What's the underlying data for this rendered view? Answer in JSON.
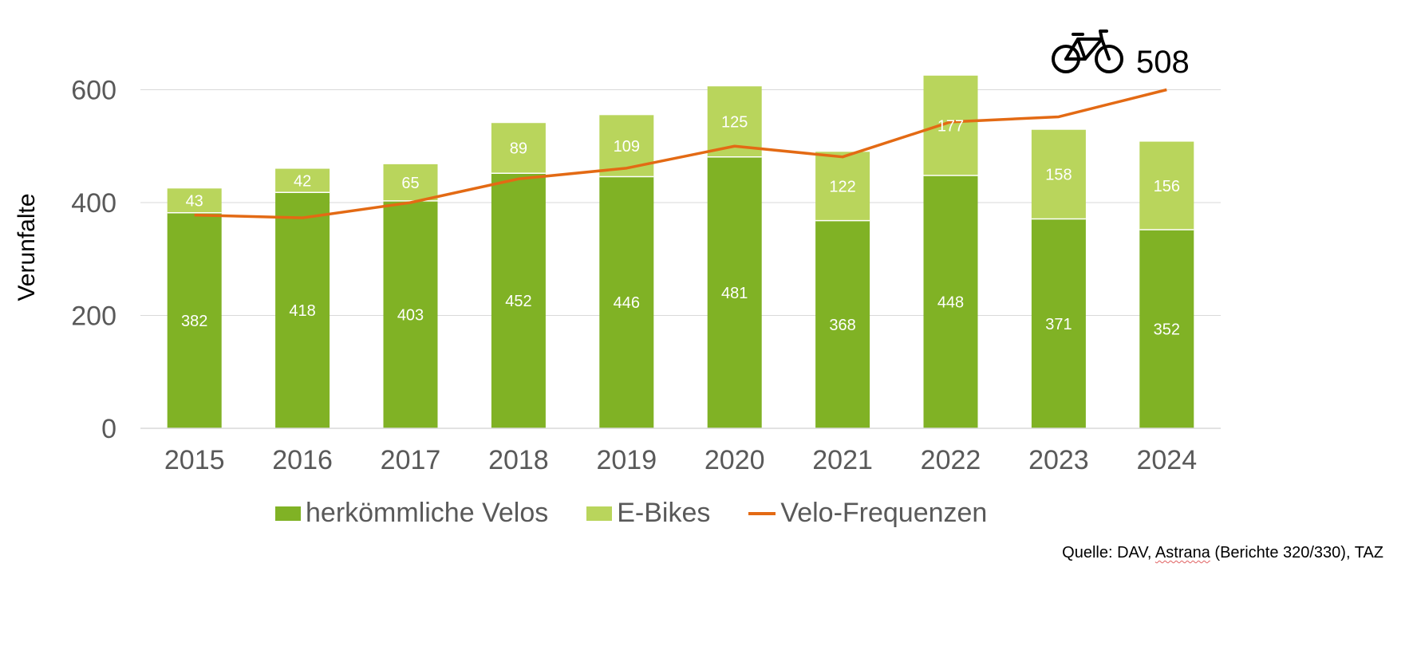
{
  "chart_data": {
    "type": "bar",
    "stacked": true,
    "categories": [
      "2015",
      "2016",
      "2017",
      "2018",
      "2019",
      "2020",
      "2021",
      "2022",
      "2023",
      "2024"
    ],
    "series": [
      {
        "name": "herkömmliche Velos",
        "type": "bar",
        "color": "#80b225",
        "values": [
          382,
          418,
          403,
          452,
          446,
          481,
          368,
          448,
          371,
          352
        ]
      },
      {
        "name": "E-Bikes",
        "type": "bar",
        "color": "#b9d55c",
        "values": [
          43,
          42,
          65,
          89,
          109,
          125,
          122,
          177,
          158,
          156
        ]
      },
      {
        "name": "Velo-Frequenzen",
        "type": "line",
        "color": "#e36a14",
        "values": [
          378,
          373,
          400,
          442,
          461,
          500,
          481,
          543,
          552,
          600
        ]
      }
    ],
    "ylabel": "Verunfalte",
    "xlabel": "",
    "ylim": [
      0,
      700
    ],
    "yticks": [
      "0",
      "200",
      "400",
      "600"
    ],
    "grid": true,
    "legend": "bottom",
    "annotation": {
      "icon": "bicycle-icon",
      "text": "508"
    },
    "source": {
      "prefix": "Quelle: DAV, ",
      "underlined": "Astrana",
      "suffix": " (Berichte 320/330), TAZ"
    }
  }
}
